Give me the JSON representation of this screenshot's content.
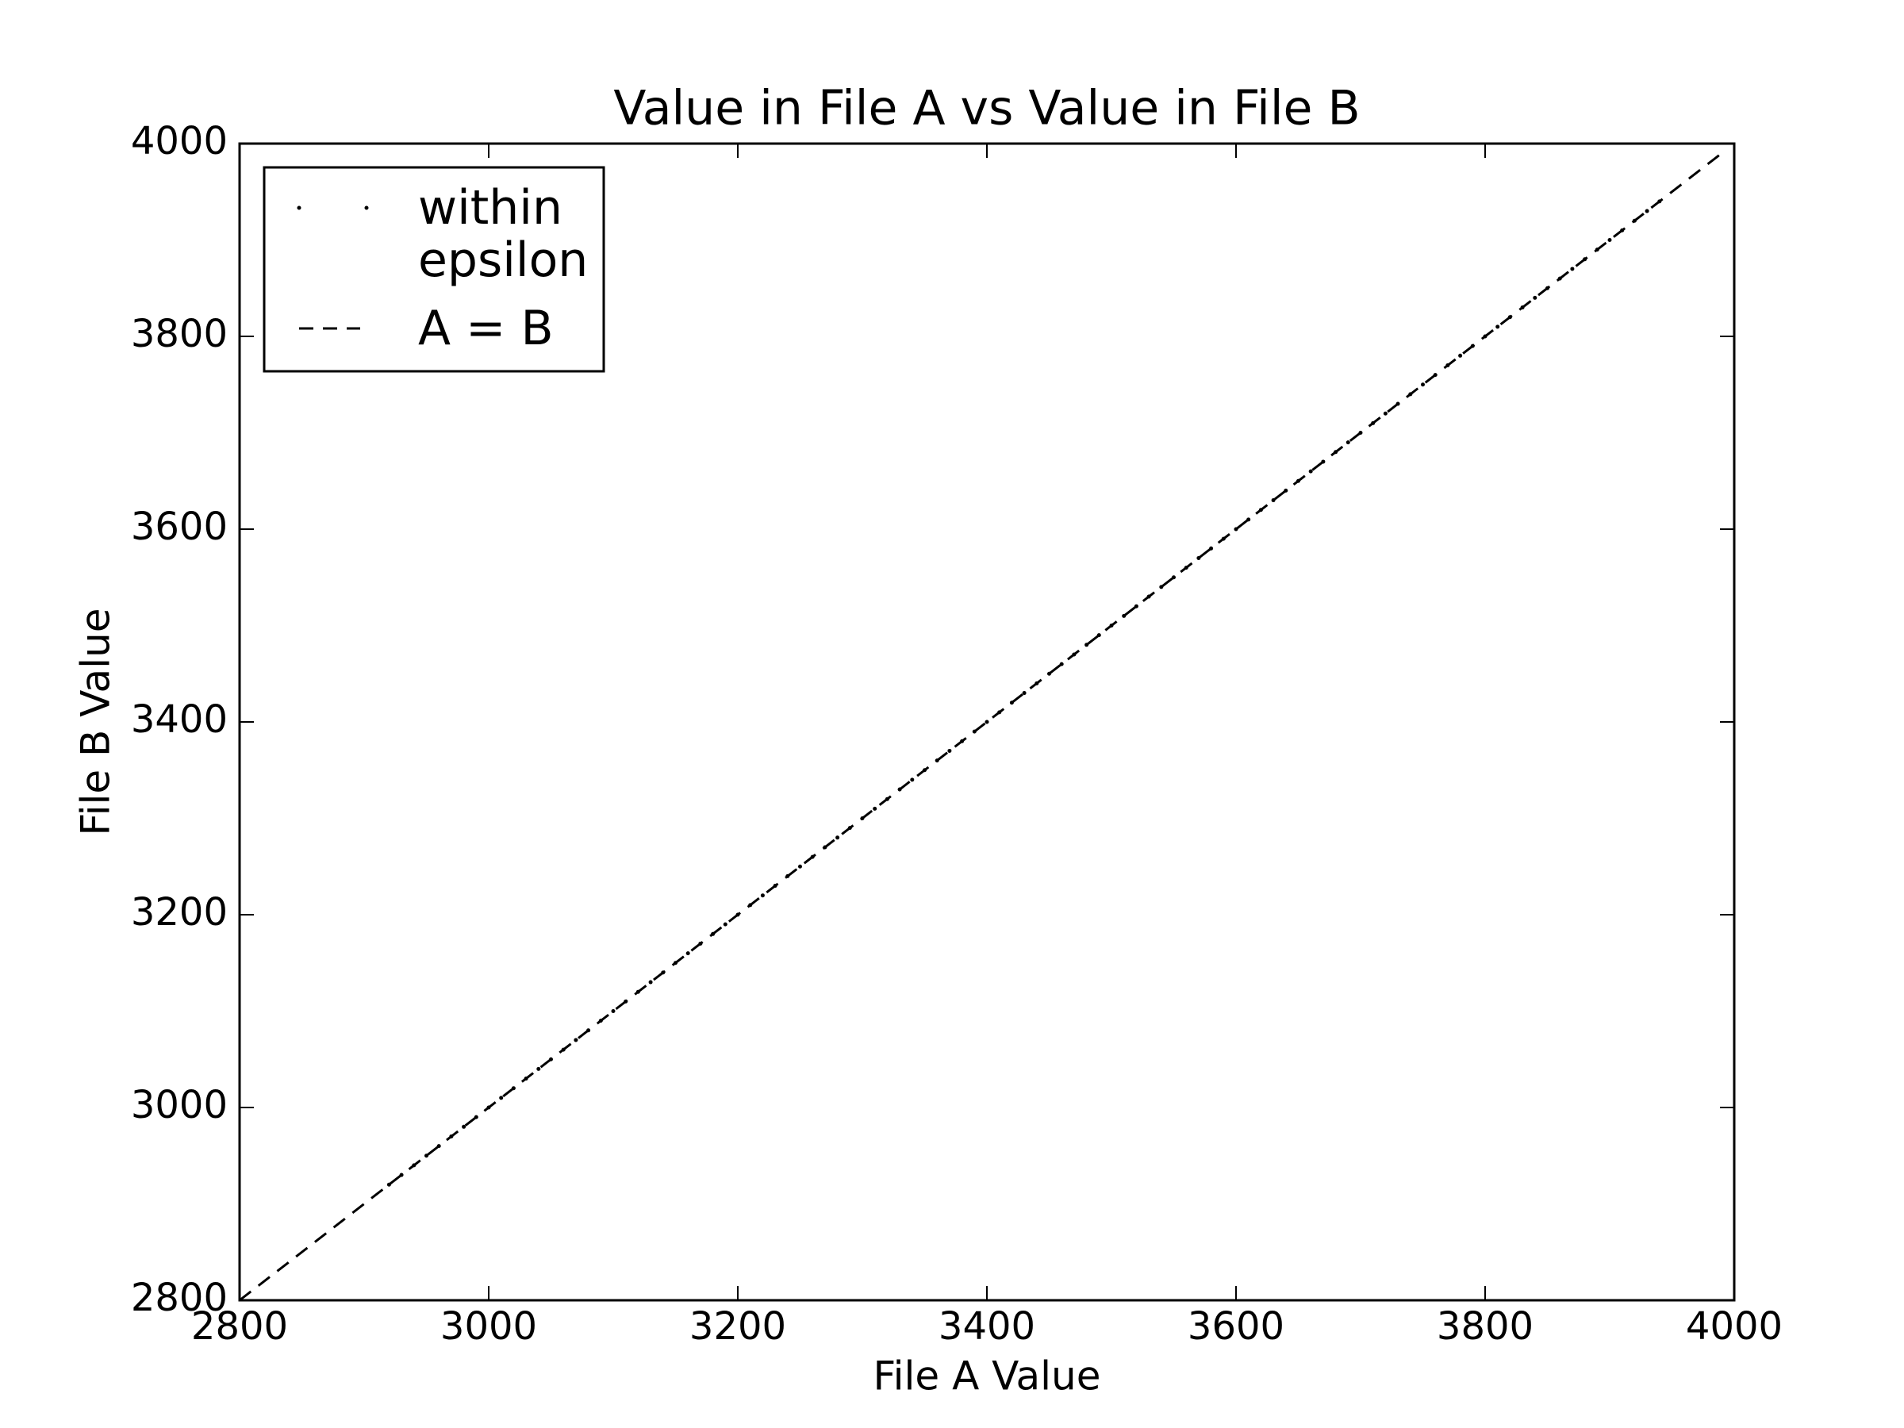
{
  "chart_data": {
    "type": "scatter",
    "title": "Value in File A vs Value in File B",
    "x_label": "File A Value",
    "y_label": "File B Value",
    "xlim": [
      2800,
      4000
    ],
    "ylim": [
      2800,
      4000
    ],
    "xticks": [
      2800,
      3000,
      3200,
      3400,
      3600,
      3800,
      4000
    ],
    "yticks": [
      2800,
      3000,
      3200,
      3400,
      3600,
      3800,
      4000
    ],
    "grid": false,
    "legend": "upper left",
    "series": [
      {
        "name": "within epsilon",
        "color": "#000000",
        "marker": "point",
        "x": [
          2920,
          2930,
          2940,
          2950,
          2960,
          2970,
          2980,
          2990,
          3000,
          3010,
          3020,
          3030,
          3040,
          3050,
          3060,
          3070,
          3080,
          3090,
          3100,
          3110,
          3120,
          3130,
          3140,
          3150,
          3160,
          3170,
          3180,
          3190,
          3200,
          3210,
          3220,
          3230,
          3240,
          3250,
          3260,
          3270,
          3280,
          3290,
          3300,
          3310,
          3320,
          3330,
          3340,
          3350,
          3360,
          3370,
          3380,
          3390,
          3400,
          3410,
          3420,
          3430,
          3440,
          3450,
          3460,
          3470,
          3480,
          3490,
          3500,
          3510,
          3520,
          3530,
          3540,
          3550,
          3560,
          3570,
          3580,
          3590,
          3600,
          3610,
          3620,
          3630,
          3640,
          3650,
          3660,
          3670,
          3680,
          3690,
          3700,
          3710,
          3720,
          3730,
          3740,
          3750,
          3760,
          3770,
          3780,
          3790,
          3800,
          3810,
          3820,
          3830,
          3840,
          3850,
          3860,
          3870,
          3880,
          3890,
          3900,
          3910,
          3920,
          3930,
          3940
        ],
        "y": [
          2920,
          2930,
          2940,
          2950,
          2960,
          2970,
          2980,
          2990,
          3000,
          3010,
          3020,
          3030,
          3040,
          3050,
          3060,
          3070,
          3080,
          3090,
          3100,
          3110,
          3120,
          3130,
          3140,
          3150,
          3160,
          3170,
          3180,
          3190,
          3200,
          3210,
          3220,
          3230,
          3240,
          3250,
          3260,
          3270,
          3280,
          3290,
          3300,
          3310,
          3320,
          3330,
          3340,
          3350,
          3360,
          3370,
          3380,
          3390,
          3400,
          3410,
          3420,
          3430,
          3440,
          3450,
          3460,
          3470,
          3480,
          3490,
          3500,
          3510,
          3520,
          3530,
          3540,
          3550,
          3560,
          3570,
          3580,
          3590,
          3600,
          3610,
          3620,
          3630,
          3640,
          3650,
          3660,
          3670,
          3680,
          3690,
          3700,
          3710,
          3720,
          3730,
          3740,
          3750,
          3760,
          3770,
          3780,
          3790,
          3800,
          3810,
          3820,
          3830,
          3840,
          3850,
          3860,
          3870,
          3880,
          3890,
          3900,
          3910,
          3920,
          3930,
          3940
        ]
      },
      {
        "name": "A = B",
        "color": "#000000",
        "linestyle": "dashed",
        "x": [
          2800,
          3990
        ],
        "y": [
          2800,
          3990
        ]
      }
    ]
  }
}
